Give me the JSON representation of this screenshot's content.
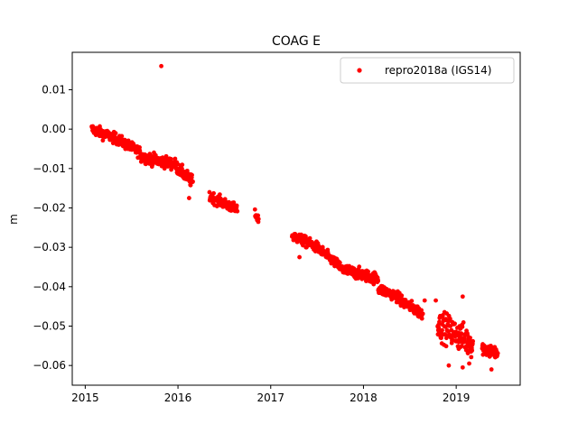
{
  "chart_data": {
    "type": "scatter",
    "title": "COAG E",
    "xlabel": "",
    "ylabel": "m",
    "xlim": [
      2014.86,
      2019.69
    ],
    "ylim": [
      -0.065,
      0.0195
    ],
    "x_ticks": [
      2015,
      2016,
      2017,
      2018,
      2019
    ],
    "x_tick_labels": [
      "2015",
      "2016",
      "2017",
      "2018",
      "2019"
    ],
    "y_ticks": [
      0.01,
      0.0,
      -0.01,
      -0.02,
      -0.03,
      -0.04,
      -0.05,
      -0.06
    ],
    "y_tick_labels": [
      "0.01",
      "0.00",
      "−0.01",
      "−0.02",
      "−0.03",
      "−0.04",
      "−0.05",
      "−0.06"
    ],
    "grid": false,
    "legend_position": "top-right",
    "series": [
      {
        "name": "repro2018a (IGS14)",
        "color": "#ff0000",
        "marker": "point",
        "segments": [
          {
            "x_start": 2015.07,
            "x_end": 2015.34,
            "y_start": 0.0,
            "y_end": -0.0025,
            "noise": 0.0011,
            "step": 0.003
          },
          {
            "x_start": 2015.34,
            "x_end": 2015.6,
            "y_start": -0.0025,
            "y_end": -0.006,
            "noise": 0.0011,
            "step": 0.003
          },
          {
            "x_start": 2015.6,
            "x_end": 2015.98,
            "y_start": -0.007,
            "y_end": -0.009,
            "noise": 0.0012,
            "step": 0.003
          },
          {
            "x_start": 2015.98,
            "x_end": 2016.16,
            "y_start": -0.0095,
            "y_end": -0.0135,
            "noise": 0.0013,
            "step": 0.003
          },
          {
            "x_start": 2016.34,
            "x_end": 2016.64,
            "y_start": -0.017,
            "y_end": -0.0205,
            "noise": 0.0011,
            "step": 0.003
          },
          {
            "x_start": 2016.83,
            "x_end": 2016.87,
            "y_start": -0.0215,
            "y_end": -0.023,
            "noise": 0.0008,
            "step": 0.003
          },
          {
            "x_start": 2017.23,
            "x_end": 2017.5,
            "y_start": -0.027,
            "y_end": -0.03,
            "noise": 0.0011,
            "step": 0.003
          },
          {
            "x_start": 2017.5,
            "x_end": 2017.75,
            "y_start": -0.03,
            "y_end": -0.035,
            "noise": 0.0011,
            "step": 0.003
          },
          {
            "x_start": 2017.75,
            "x_end": 2018.16,
            "y_start": -0.0355,
            "y_end": -0.038,
            "noise": 0.0012,
            "step": 0.003
          },
          {
            "x_start": 2018.16,
            "x_end": 2018.37,
            "y_start": -0.0405,
            "y_end": -0.0425,
            "noise": 0.0011,
            "step": 0.003
          },
          {
            "x_start": 2018.37,
            "x_end": 2018.64,
            "y_start": -0.043,
            "y_end": -0.047,
            "noise": 0.0012,
            "step": 0.003
          },
          {
            "x_start": 2018.8,
            "x_end": 2018.85,
            "y_start": -0.049,
            "y_end": -0.051,
            "noise": 0.0025,
            "step": 0.003
          },
          {
            "x_start": 2018.85,
            "x_end": 2019.18,
            "y_start": -0.05,
            "y_end": -0.0545,
            "noise": 0.003,
            "step": 0.003
          },
          {
            "x_start": 2019.28,
            "x_end": 2019.45,
            "y_start": -0.0555,
            "y_end": -0.057,
            "noise": 0.0015,
            "step": 0.003
          }
        ],
        "extra_points": [
          {
            "x": 2015.82,
            "y": 0.016
          },
          {
            "x": 2018.78,
            "y": -0.0435
          },
          {
            "x": 2019.07,
            "y": -0.0425
          },
          {
            "x": 2018.66,
            "y": -0.0435
          },
          {
            "x": 2018.92,
            "y": -0.06
          },
          {
            "x": 2019.07,
            "y": -0.0605
          },
          {
            "x": 2019.14,
            "y": -0.0595
          },
          {
            "x": 2019.38,
            "y": -0.061
          },
          {
            "x": 2017.31,
            "y": -0.0325
          },
          {
            "x": 2016.12,
            "y": -0.0175
          }
        ]
      }
    ]
  }
}
